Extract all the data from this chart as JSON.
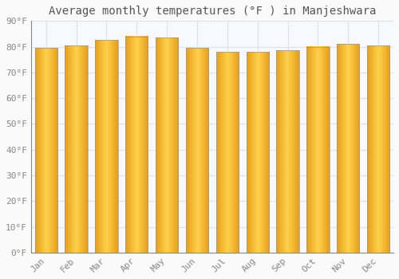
{
  "title": "Average monthly temperatures (°F ) in Manjeshwara",
  "months": [
    "Jan",
    "Feb",
    "Mar",
    "Apr",
    "May",
    "Jun",
    "Jul",
    "Aug",
    "Sep",
    "Oct",
    "Nov",
    "Dec"
  ],
  "values": [
    79.5,
    80.5,
    82.5,
    84.0,
    83.5,
    79.5,
    78.0,
    78.0,
    78.5,
    80.0,
    81.0,
    80.5
  ],
  "bar_color_left": "#E8A020",
  "bar_color_center": "#FFD060",
  "bar_color_right": "#E8A020",
  "bar_edge_color": "#999999",
  "background_color": "#FAFAFA",
  "plot_bg_color": "#F8F8FF",
  "grid_color": "#E0E0E8",
  "ylim": [
    0,
    90
  ],
  "yticks": [
    0,
    10,
    20,
    30,
    40,
    50,
    60,
    70,
    80,
    90
  ],
  "ytick_labels": [
    "0°F",
    "10°F",
    "20°F",
    "30°F",
    "40°F",
    "50°F",
    "60°F",
    "70°F",
    "80°F",
    "90°F"
  ],
  "title_fontsize": 10,
  "tick_fontsize": 8,
  "font_family": "monospace",
  "bar_width": 0.75
}
